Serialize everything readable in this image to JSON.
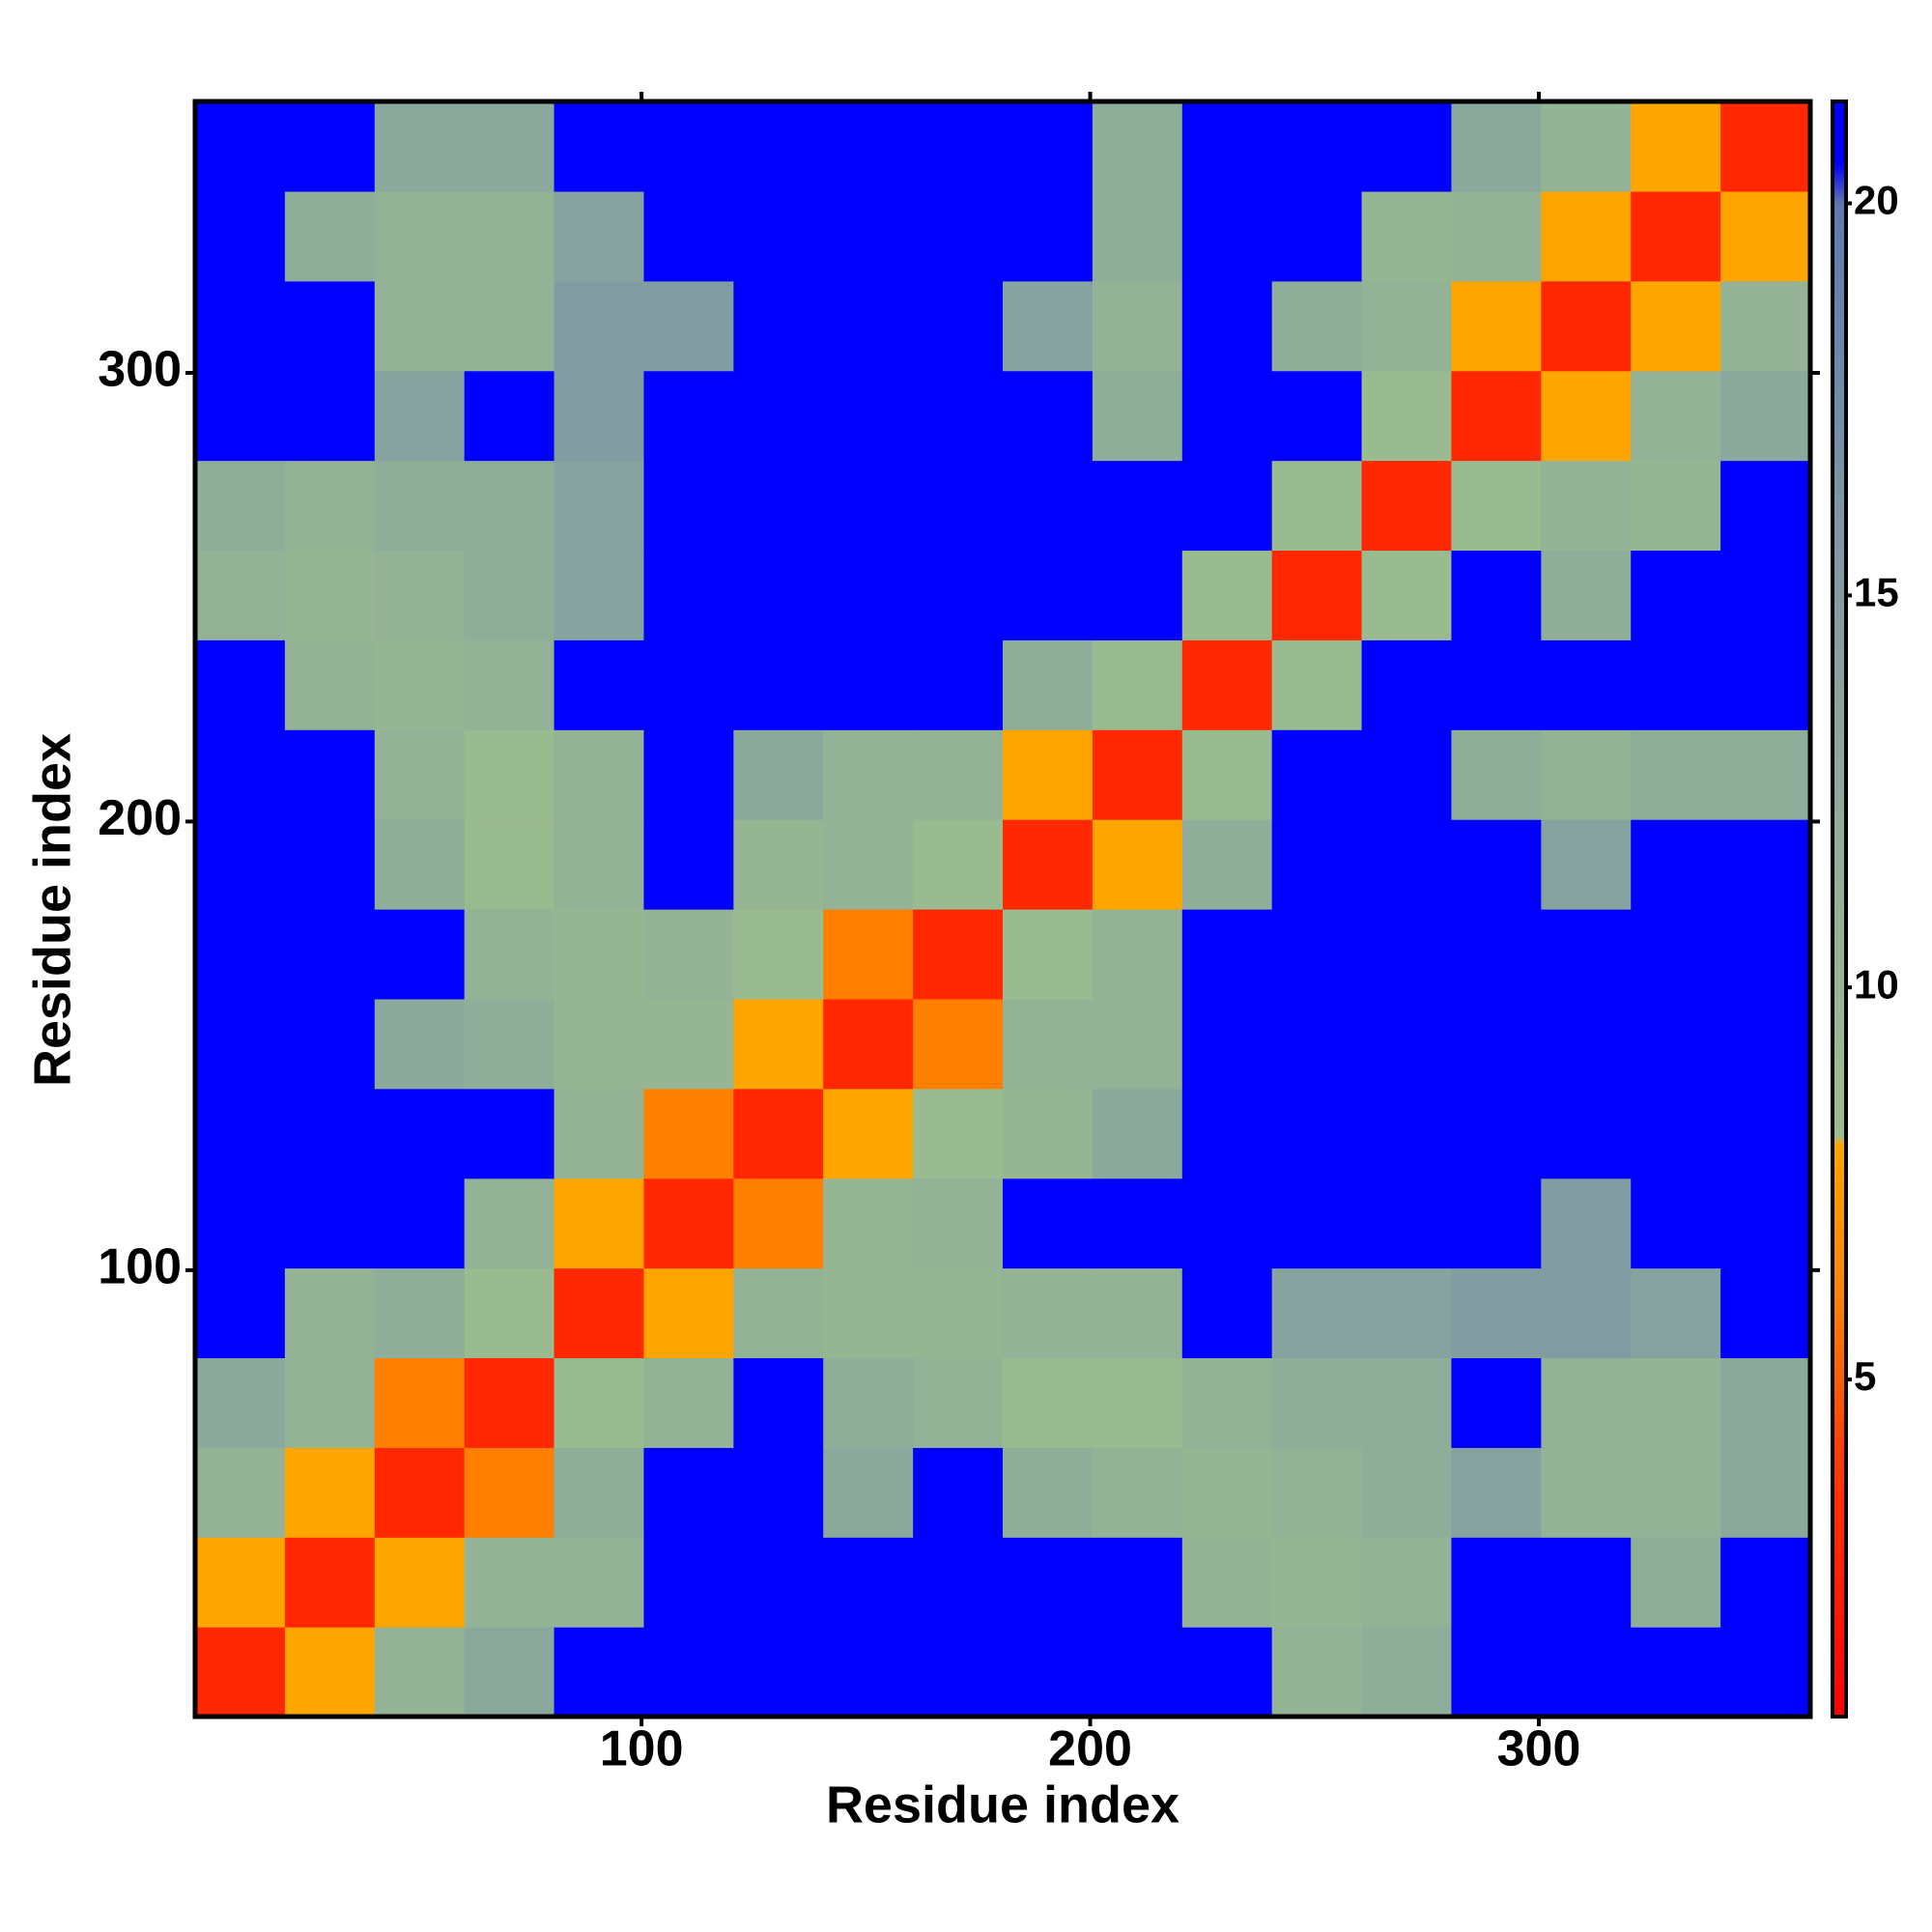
{
  "chart_data": {
    "type": "heatmap",
    "x_label": "Residue index",
    "y_label": "Residue index",
    "x": [
      10.5,
      30.5,
      50.5,
      70.5,
      90.5,
      110.5,
      130.5,
      150.5,
      170.5,
      190.5,
      210.5,
      230.5,
      250.5,
      270.5,
      290.5,
      310.5,
      330.5,
      350.5
    ],
    "y": [
      10.5,
      30.5,
      50.5,
      70.5,
      90.5,
      110.5,
      130.5,
      150.5,
      170.5,
      190.5,
      210.5,
      230.5,
      250.5,
      270.5,
      290.5,
      310.5,
      330.5,
      350.5
    ],
    "z": [
      [
        3,
        8,
        11,
        13,
        21,
        21,
        21,
        21,
        21,
        21,
        21,
        21,
        11,
        12,
        21,
        21,
        21,
        21
      ],
      [
        8,
        3,
        8,
        11,
        11,
        21,
        21,
        21,
        21,
        21,
        21,
        11,
        10,
        11,
        21,
        21,
        12,
        21
      ],
      [
        11,
        8,
        3,
        6,
        12,
        21,
        21,
        13,
        21,
        12,
        11,
        10,
        11,
        12,
        14,
        11,
        11,
        13
      ],
      [
        13,
        11,
        6,
        3,
        9,
        11,
        21,
        12,
        11,
        9,
        9,
        11,
        12,
        12,
        21,
        11,
        11,
        13
      ],
      [
        21,
        11,
        12,
        9,
        3,
        8,
        11,
        10,
        10,
        11,
        11,
        21,
        14,
        14,
        15,
        15,
        14,
        21
      ],
      [
        21,
        21,
        21,
        11,
        8,
        3,
        6,
        10,
        11,
        21,
        21,
        21,
        21,
        21,
        21,
        15,
        21,
        21
      ],
      [
        21,
        21,
        21,
        21,
        11,
        6,
        3,
        8,
        9,
        10,
        13,
        21,
        21,
        21,
        21,
        21,
        21,
        21
      ],
      [
        21,
        21,
        13,
        12,
        10,
        10,
        8,
        3,
        6,
        11,
        11,
        21,
        21,
        21,
        21,
        21,
        21,
        21
      ],
      [
        21,
        21,
        21,
        11,
        10,
        11,
        9,
        6,
        3,
        9,
        11,
        21,
        21,
        21,
        21,
        21,
        21,
        21
      ],
      [
        21,
        21,
        12,
        9,
        11,
        21,
        10,
        11,
        9,
        3,
        8,
        12,
        21,
        21,
        21,
        14,
        21,
        21
      ],
      [
        21,
        21,
        11,
        9,
        11,
        21,
        13,
        11,
        11,
        8,
        3,
        9,
        21,
        21,
        12,
        11,
        12,
        12
      ],
      [
        21,
        11,
        10,
        11,
        21,
        21,
        21,
        21,
        21,
        12,
        9,
        3,
        9,
        21,
        21,
        21,
        21,
        21
      ],
      [
        11,
        10,
        11,
        12,
        14,
        21,
        21,
        21,
        21,
        21,
        21,
        9,
        3,
        9,
        21,
        12,
        21,
        21
      ],
      [
        12,
        11,
        12,
        12,
        14,
        21,
        21,
        21,
        21,
        21,
        21,
        21,
        9,
        3,
        9,
        11,
        10,
        21
      ],
      [
        21,
        21,
        14,
        21,
        15,
        21,
        21,
        21,
        21,
        21,
        12,
        21,
        21,
        9,
        3,
        8,
        11,
        13
      ],
      [
        21,
        21,
        11,
        11,
        15,
        15,
        21,
        21,
        21,
        14,
        11,
        21,
        12,
        11,
        8,
        3,
        8,
        11
      ],
      [
        21,
        12,
        11,
        11,
        14,
        21,
        21,
        21,
        21,
        21,
        12,
        21,
        21,
        10,
        11,
        8,
        3,
        8
      ],
      [
        21,
        21,
        13,
        13,
        21,
        21,
        21,
        21,
        21,
        21,
        12,
        21,
        21,
        21,
        13,
        11,
        8,
        3
      ]
    ],
    "xlim": [
      0.5,
      360.5
    ],
    "ylim": [
      0.5,
      360.5
    ],
    "xticks": [
      100,
      200,
      300
    ],
    "yticks": [
      100,
      200,
      300
    ],
    "clim": [
      0.7,
      21.3
    ],
    "cticks": [
      5,
      10,
      15,
      20
    ],
    "colorscale": [
      [
        0.7,
        "#ff0000"
      ],
      [
        4,
        "#ff3a00"
      ],
      [
        6,
        "#ff8000"
      ],
      [
        8,
        "#ffa500"
      ],
      [
        8.1,
        "#9dbd8c"
      ],
      [
        12,
        "#8fae9a"
      ],
      [
        16,
        "#7d97a5"
      ],
      [
        20,
        "#5b7ab0"
      ],
      [
        20.5,
        "#0000ff"
      ],
      [
        21.3,
        "#0000ff"
      ]
    ]
  }
}
